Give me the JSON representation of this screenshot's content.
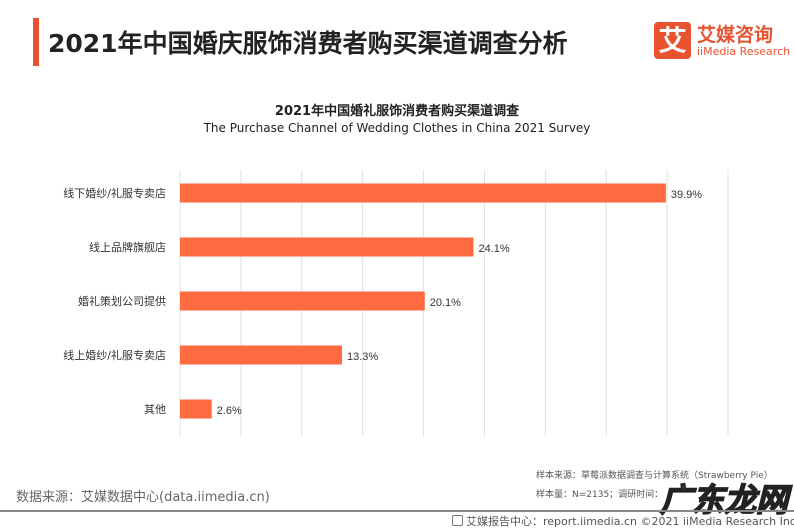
{
  "header": {
    "title": "2021年中国婚庆服饰消费者购买渠道调查分析",
    "logo_mark": "艾",
    "logo_cn": "艾媒咨询",
    "logo_en": "iiMedia Research"
  },
  "chart_data": {
    "type": "bar",
    "orientation": "horizontal",
    "title": "2021年中国婚礼服饰消费者购买渠道调查",
    "subtitle": "The Purchase Channel of Wedding Clothes in China 2021 Survey",
    "categories": [
      "线下婚纱/礼服专卖店",
      "线上品牌旗舰店",
      "婚礼策划公司提供",
      "线上婚纱/礼服专卖店",
      "其他"
    ],
    "values": [
      39.9,
      24.1,
      20.1,
      13.3,
      2.6
    ],
    "data_labels": [
      "39.9%",
      "24.1%",
      "20.1%",
      "13.3%",
      "2.6%"
    ],
    "xlim": [
      0,
      45
    ],
    "grid": true,
    "grid_step": 5,
    "bar_color": "#ff6a40",
    "grid_color": "#e0e0e0"
  },
  "footer": {
    "source": "数据来源：艾媒数据中心(data.iimedia.cn)",
    "sample_source": "样本来源：草莓派数据调查与计算系统（Strawberry Pie）",
    "sample_size": "样本量：N=2135；调研时间：",
    "watermark": "广东龙网",
    "report": "艾媒报告中心：report.iimedia.cn   ©2021  iiMedia Research  Inc"
  }
}
